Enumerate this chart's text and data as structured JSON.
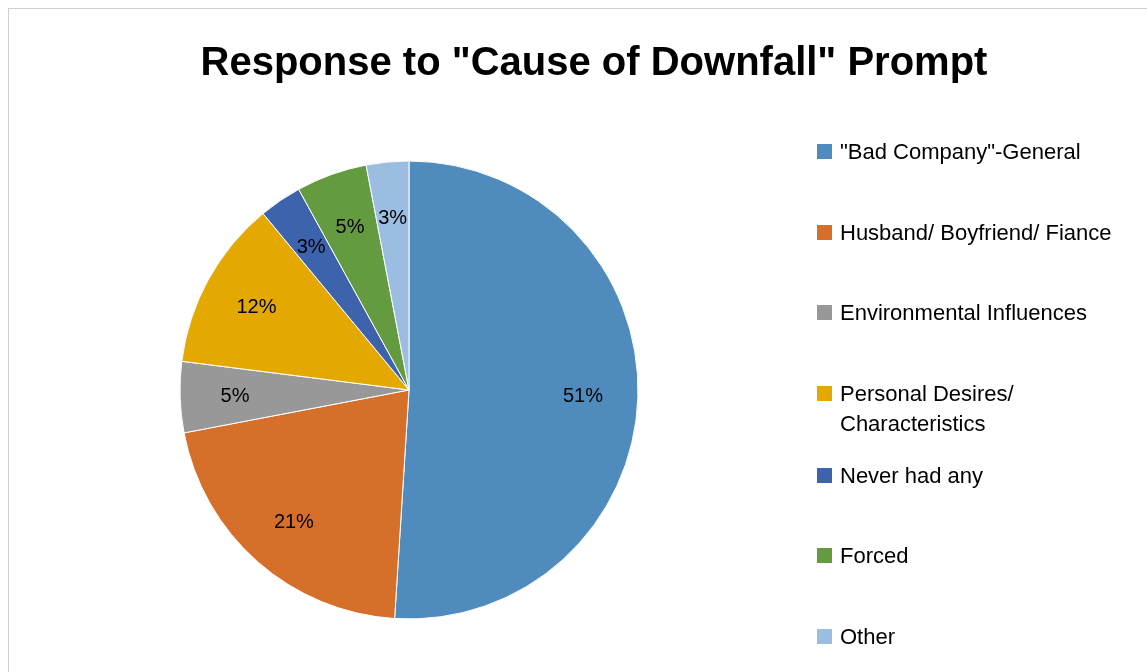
{
  "chart_data": {
    "type": "pie",
    "title": "Response to \"Cause of Downfall\" Prompt",
    "categories": [
      "\"Bad Company\"-General",
      "Husband/ Boyfriend/ Fiance",
      "Environmental Influences",
      "Personal Desires/ Characteristics",
      "Never had any",
      "Forced",
      "Other"
    ],
    "values": [
      51,
      21,
      5,
      12,
      3,
      5,
      3
    ],
    "value_labels": [
      "51%",
      "21%",
      "5%",
      "12%",
      "3%",
      "5%",
      "3%"
    ],
    "colors": [
      "#4f8bbd",
      "#d66f2a",
      "#989898",
      "#e3a900",
      "#3d63ad",
      "#659b40",
      "#9bbde2"
    ],
    "legend": "right"
  }
}
